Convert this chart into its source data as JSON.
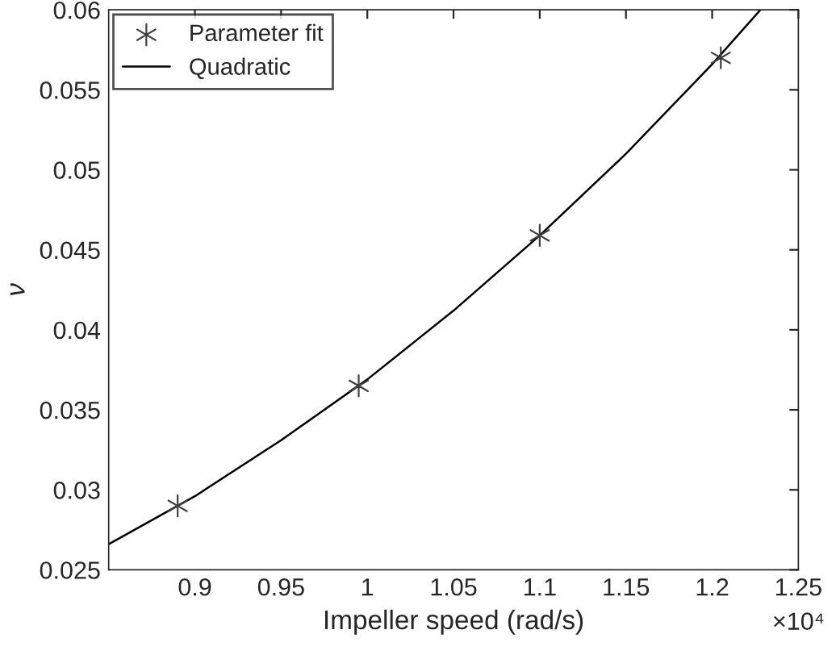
{
  "chart_data": {
    "type": "scatter",
    "xlabel": "Impeller speed (rad/s)",
    "ylabel": "ν",
    "xlim": [
      0.85,
      1.25
    ],
    "ylim": [
      0.025,
      0.06
    ],
    "xticks": [
      0.9,
      0.95,
      1,
      1.05,
      1.1,
      1.15,
      1.2,
      1.25
    ],
    "yticks": [
      0.025,
      0.03,
      0.035,
      0.04,
      0.045,
      0.05,
      0.055,
      0.06
    ],
    "annotations": [
      "×10⁴"
    ],
    "legend": "top left",
    "grid": false,
    "series": [
      {
        "name": "Parameter fit",
        "marker": "cross",
        "color": "#404040",
        "x": [
          0.89,
          0.995,
          1.1,
          1.205
        ],
        "values": [
          0.029,
          0.0365,
          0.0459,
          0.057
        ]
      },
      {
        "name": "Quadratic",
        "type": "line",
        "marker": "none",
        "line_style": "solid",
        "color": "#000000",
        "x": [
          0.85,
          0.9,
          0.95,
          1.0,
          1.05,
          1.1,
          1.15,
          1.2,
          1.228
        ],
        "values": [
          0.0266,
          0.0296,
          0.0331,
          0.0369,
          0.0412,
          0.0459,
          0.051,
          0.0566,
          0.06
        ]
      }
    ]
  }
}
